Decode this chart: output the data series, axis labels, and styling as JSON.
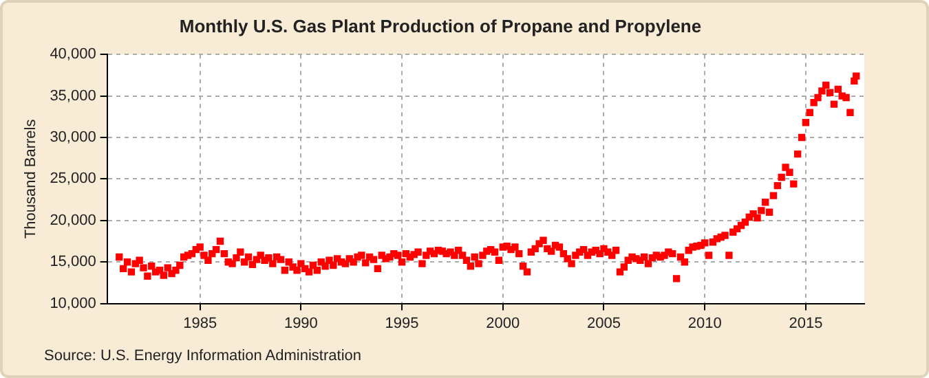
{
  "chart_data": {
    "type": "scatter",
    "title": "Monthly U.S. Gas Plant Production of Propane and Propylene",
    "ylabel": "Thousand Barrels",
    "annotations": [
      "Source: U.S. Energy Information Administration"
    ],
    "xlim": [
      1980.4,
      2017.9
    ],
    "xticks": [
      1985,
      1990,
      1995,
      2000,
      2005,
      2010,
      2015
    ],
    "ylim": [
      10000,
      40000
    ],
    "yticks": [
      {
        "value": 10000,
        "label": "10,000"
      },
      {
        "value": 15000,
        "label": "15,000"
      },
      {
        "value": 20000,
        "label": "20,000"
      },
      {
        "value": 25000,
        "label": "25,000"
      },
      {
        "value": 30000,
        "label": "30,000"
      },
      {
        "value": 35000,
        "label": "35,000"
      },
      {
        "value": 40000,
        "label": "40,000"
      }
    ],
    "grid": true,
    "legend": false,
    "marker": "square",
    "series": [
      {
        "color": "#ff0000",
        "x": [
          1981.0,
          1981.2,
          1981.4,
          1981.6,
          1981.8,
          1982.0,
          1982.2,
          1982.4,
          1982.6,
          1982.8,
          1983.0,
          1983.2,
          1983.4,
          1983.6,
          1983.8,
          1984.0,
          1984.2,
          1984.4,
          1984.6,
          1984.8,
          1985.0,
          1985.2,
          1985.4,
          1985.6,
          1985.8,
          1986.0,
          1986.2,
          1986.4,
          1986.6,
          1986.8,
          1987.0,
          1987.2,
          1987.4,
          1987.6,
          1987.8,
          1988.0,
          1988.2,
          1988.4,
          1988.6,
          1988.8,
          1989.0,
          1989.2,
          1989.4,
          1989.6,
          1989.8,
          1990.0,
          1990.2,
          1990.4,
          1990.6,
          1990.8,
          1991.0,
          1991.2,
          1991.4,
          1991.6,
          1991.8,
          1992.0,
          1992.2,
          1992.4,
          1992.6,
          1992.8,
          1993.0,
          1993.2,
          1993.4,
          1993.6,
          1993.8,
          1994.0,
          1994.2,
          1994.4,
          1994.6,
          1994.8,
          1995.0,
          1995.2,
          1995.4,
          1995.6,
          1995.8,
          1996.0,
          1996.2,
          1996.4,
          1996.6,
          1996.8,
          1997.0,
          1997.2,
          1997.4,
          1997.6,
          1997.8,
          1998.0,
          1998.2,
          1998.4,
          1998.6,
          1998.8,
          1999.0,
          1999.2,
          1999.4,
          1999.6,
          1999.8,
          2000.0,
          2000.2,
          2000.4,
          2000.6,
          2000.8,
          2001.0,
          2001.2,
          2001.4,
          2001.6,
          2001.8,
          2002.0,
          2002.2,
          2002.4,
          2002.6,
          2002.8,
          2003.0,
          2003.2,
          2003.4,
          2003.6,
          2003.8,
          2004.0,
          2004.2,
          2004.4,
          2004.6,
          2004.8,
          2005.0,
          2005.2,
          2005.4,
          2005.6,
          2005.8,
          2006.0,
          2006.2,
          2006.4,
          2006.6,
          2006.8,
          2007.0,
          2007.2,
          2007.4,
          2007.6,
          2007.8,
          2008.0,
          2008.2,
          2008.4,
          2008.6,
          2008.8,
          2009.0,
          2009.2,
          2009.4,
          2009.6,
          2009.8,
          2010.0,
          2010.2,
          2010.4,
          2010.6,
          2010.8,
          2011.0,
          2011.2,
          2011.4,
          2011.6,
          2011.8,
          2012.0,
          2012.2,
          2012.4,
          2012.6,
          2012.8,
          2013.0,
          2013.2,
          2013.4,
          2013.6,
          2013.8,
          2014.0,
          2014.2,
          2014.4,
          2014.6,
          2014.8,
          2015.0,
          2015.2,
          2015.4,
          2015.6,
          2015.8,
          2016.0,
          2016.2,
          2016.4,
          2016.6,
          2016.8,
          2017.0,
          2017.2,
          2017.4,
          2017.5
        ],
        "values": [
          15600,
          14200,
          15000,
          13800,
          14800,
          15200,
          14300,
          13300,
          14500,
          13800,
          14000,
          13400,
          14300,
          13600,
          14000,
          14600,
          15600,
          15800,
          16000,
          16500,
          16800,
          15800,
          15200,
          16000,
          16500,
          17500,
          16000,
          15000,
          14800,
          15500,
          16200,
          15000,
          15600,
          14700,
          15300,
          15800,
          15200,
          15500,
          14800,
          15600,
          15300,
          14000,
          15000,
          14400,
          14000,
          14800,
          14200,
          13800,
          14600,
          14000,
          15000,
          14500,
          15200,
          14600,
          15400,
          15000,
          14800,
          15400,
          15000,
          15600,
          15800,
          14900,
          15600,
          15300,
          14200,
          15800,
          15400,
          15600,
          16000,
          15800,
          15000,
          16000,
          15600,
          15900,
          16200,
          14800,
          15800,
          16300,
          16000,
          16400,
          16300,
          16000,
          16200,
          15800,
          16400,
          15800,
          15200,
          14500,
          15600,
          14800,
          15800,
          16300,
          16500,
          16200,
          15200,
          16800,
          16900,
          16500,
          16800,
          16000,
          14500,
          13800,
          16200,
          16600,
          17200,
          17600,
          16600,
          16300,
          17000,
          16800,
          16000,
          15400,
          14800,
          15800,
          16200,
          16500,
          15800,
          16200,
          16400,
          16000,
          16600,
          16200,
          15800,
          16400,
          13800,
          14400,
          15200,
          15600,
          15400,
          15200,
          15600,
          14800,
          15500,
          15800,
          15600,
          15800,
          16200,
          16000,
          13000,
          15600,
          15000,
          16400,
          16800,
          16900,
          17000,
          17300,
          15800,
          17400,
          17800,
          18000,
          18200,
          15800,
          18600,
          19000,
          19400,
          19800,
          20400,
          20800,
          20300,
          21200,
          22200,
          21000,
          23000,
          24200,
          25200,
          26400,
          25800,
          24400,
          28000,
          30000,
          31800,
          33000,
          34200,
          34800,
          35600,
          36300,
          35400,
          34000,
          35800,
          35000,
          34800,
          33000,
          36800,
          37400
        ]
      }
    ]
  }
}
